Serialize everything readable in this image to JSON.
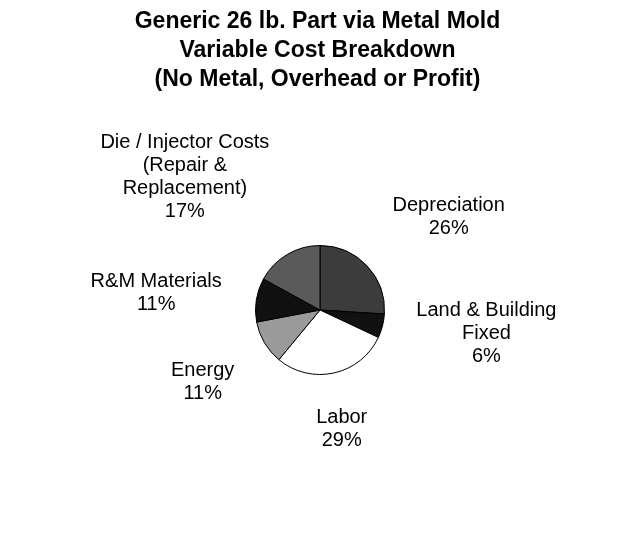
{
  "chart_data": {
    "type": "pie",
    "title": "Generic 26 lb. Part via Metal Mold Variable Cost Breakdown",
    "subtitle": "(No Metal, Overhead or Profit)",
    "categories": [
      "Depreciation",
      "Land & Building Fixed",
      "Labor",
      "Energy",
      "R&M Materials",
      "Die / Injector Costs (Repair & Replacement)"
    ],
    "values": [
      26,
      6,
      29,
      11,
      11,
      17
    ],
    "value_labels": [
      "26%",
      "6%",
      "29%",
      "11%",
      "11%",
      "17%"
    ],
    "colors": [
      "#3c3c3c",
      "#111111",
      "#ffffff",
      "#9a9a9a",
      "#111111",
      "#5a5a5a"
    ],
    "data_labels": true
  }
}
